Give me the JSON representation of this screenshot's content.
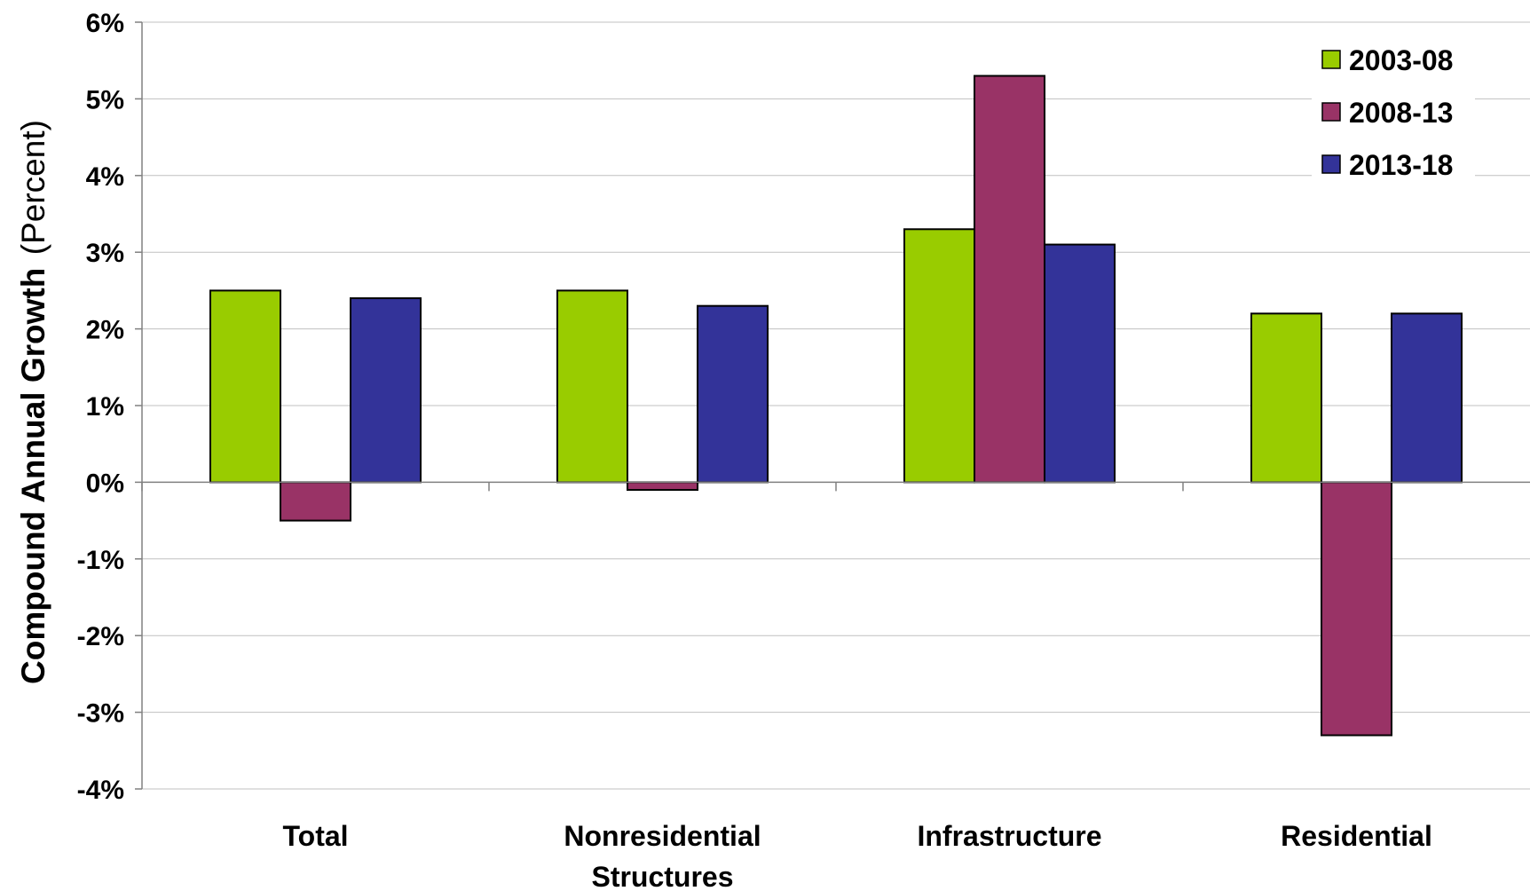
{
  "chart_data": {
    "type": "bar",
    "categories": [
      "Total",
      "Nonresidential Structures",
      "Infrastructure",
      "Residential"
    ],
    "category_lines": [
      [
        "Total"
      ],
      [
        "Nonresidential",
        "Structures"
      ],
      [
        "Infrastructure"
      ],
      [
        "Residential"
      ]
    ],
    "series": [
      {
        "name": "2003-08",
        "color": "#99cc00",
        "values": [
          2.5,
          2.5,
          3.3,
          2.2
        ]
      },
      {
        "name": "2008-13",
        "color": "#993366",
        "values": [
          -0.5,
          -0.1,
          5.3,
          -3.3
        ]
      },
      {
        "name": "2013-18",
        "color": "#333399",
        "values": [
          2.4,
          2.3,
          3.1,
          2.2
        ]
      }
    ],
    "ylabel_bold": "Compound Annual Growth",
    "ylabel_normal": "(Percent)",
    "ylim": [
      -4,
      6
    ],
    "yticks": [
      6,
      5,
      4,
      3,
      2,
      1,
      0,
      -1,
      -2,
      -3,
      -4
    ],
    "ytick_labels": [
      "6%",
      "5%",
      "4%",
      "3%",
      "2%",
      "1%",
      "0%",
      "-1%",
      "-2%",
      "-3%",
      "-4%"
    ],
    "grid": true,
    "legend_position": "top-right"
  }
}
